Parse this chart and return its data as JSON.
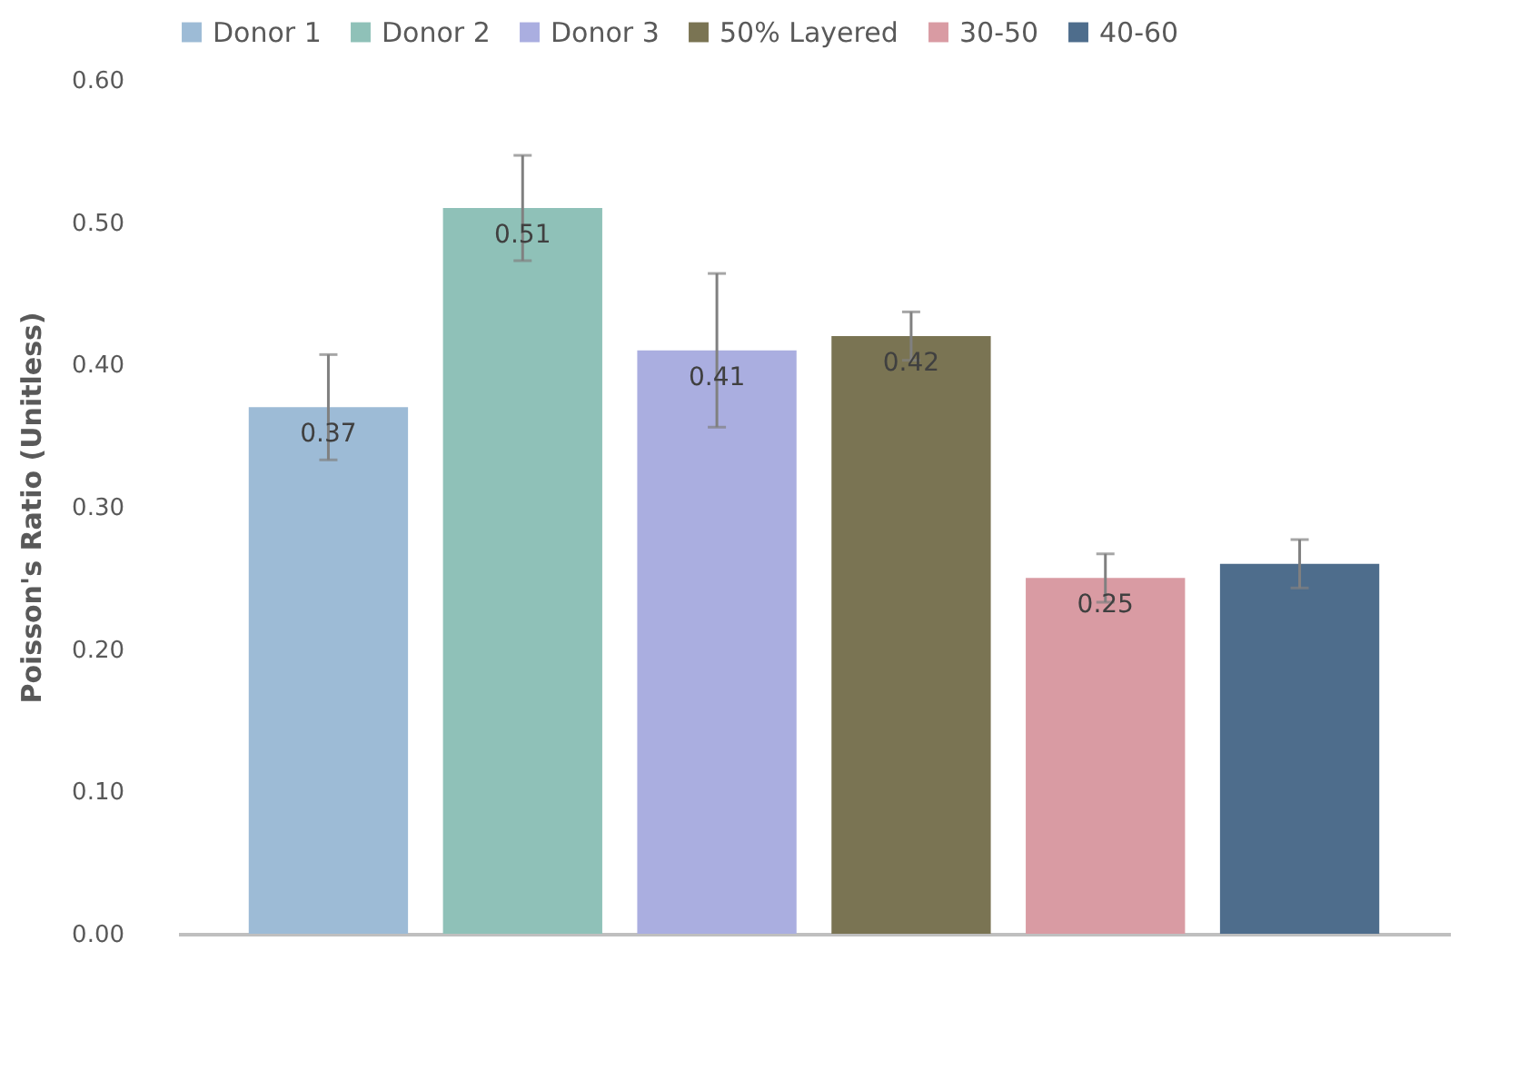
{
  "chart_data": {
    "type": "bar",
    "ylabel": "Poisson's Ratio (Unitless)",
    "categories": [
      null
    ],
    "series": [
      {
        "name": "Donor 1",
        "color": "#9dbbd6",
        "values": [
          0.37
        ],
        "errors": [
          0.037
        ],
        "value_labels": [
          "0.37"
        ]
      },
      {
        "name": "Donor 2",
        "color": "#8fc1b8",
        "values": [
          0.51
        ],
        "errors": [
          0.037
        ],
        "value_labels": [
          "0.51"
        ]
      },
      {
        "name": "Donor 3",
        "color": "#aaaee0",
        "values": [
          0.41
        ],
        "errors": [
          0.054
        ],
        "value_labels": [
          "0.41"
        ]
      },
      {
        "name": "50% Layered",
        "color": "#7a7453",
        "values": [
          0.42
        ],
        "errors": [
          0.017
        ],
        "value_labels": [
          "0.42"
        ]
      },
      {
        "name": "30-50",
        "color": "#d99ba3",
        "values": [
          0.25
        ],
        "errors": [
          0.017
        ],
        "value_labels": [
          "0.25"
        ]
      },
      {
        "name": "40-60",
        "color": "#4e6d8c",
        "values": [
          0.26
        ],
        "errors": [
          0.017
        ],
        "value_labels": [
          null
        ]
      }
    ],
    "ylim": [
      0,
      0.6
    ],
    "yticks": [
      {
        "value": 0,
        "label": "0.00"
      },
      {
        "value": 0.1,
        "label": "0.10"
      },
      {
        "value": 0.2,
        "label": "0.20"
      },
      {
        "value": 0.3,
        "label": "0.30"
      },
      {
        "value": 0.4,
        "label": "0.40"
      },
      {
        "value": 0.5,
        "label": "0.50"
      },
      {
        "value": 0.6,
        "label": "0.60"
      }
    ],
    "grid": false,
    "legend": "top"
  }
}
